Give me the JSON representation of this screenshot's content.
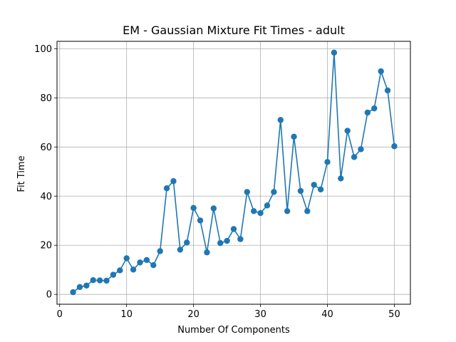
{
  "chart_data": {
    "type": "line",
    "title": "EM - Gaussian Mixture Fit Times - adult",
    "xlabel": "Number Of Components",
    "ylabel": "Fit Time",
    "xlim": [
      -0.4,
      52.4
    ],
    "ylim": [
      -4.0,
      103.0
    ],
    "xticks": [
      0,
      10,
      20,
      30,
      40,
      50
    ],
    "yticks": [
      0,
      20,
      40,
      60,
      80,
      100
    ],
    "grid": true,
    "line_color": "#1f77b4",
    "marker": "circle",
    "x": [
      2,
      3,
      4,
      5,
      6,
      7,
      8,
      9,
      10,
      11,
      12,
      13,
      14,
      15,
      16,
      17,
      18,
      19,
      20,
      21,
      22,
      23,
      24,
      25,
      26,
      27,
      28,
      29,
      30,
      31,
      32,
      33,
      34,
      35,
      36,
      37,
      38,
      39,
      40,
      41,
      42,
      43,
      44,
      45,
      46,
      47,
      48,
      49,
      50
    ],
    "y": [
      0.9,
      3.0,
      3.6,
      5.8,
      5.7,
      5.6,
      8.0,
      9.8,
      14.7,
      10.1,
      13.0,
      14.0,
      11.9,
      17.6,
      43.2,
      46.1,
      18.2,
      21.1,
      35.2,
      30.1,
      17.1,
      35.0,
      20.9,
      21.8,
      26.6,
      22.5,
      41.7,
      33.9,
      33.1,
      36.2,
      41.7,
      71.0,
      33.9,
      64.2,
      42.1,
      33.9,
      44.6,
      42.7,
      53.9,
      98.4,
      47.2,
      66.6,
      55.9,
      59.1,
      74.0,
      75.7,
      90.8,
      83.0,
      60.3
    ]
  }
}
